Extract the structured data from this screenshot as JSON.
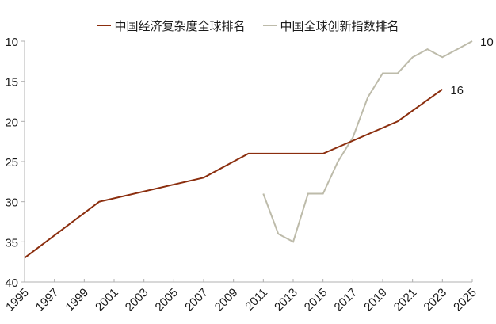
{
  "chart_data": {
    "type": "line",
    "title": "",
    "xlabel": "",
    "ylabel": "",
    "ylim": [
      40,
      10
    ],
    "y_inverted": true,
    "yticks": [
      10,
      15,
      20,
      25,
      30,
      35,
      40
    ],
    "xlim": [
      1995,
      2025
    ],
    "xticks": [
      1995,
      1997,
      1999,
      2001,
      2003,
      2005,
      2007,
      2009,
      2011,
      2013,
      2015,
      2017,
      2019,
      2021,
      2023,
      2025
    ],
    "grid": false,
    "legend_position": "top",
    "series": [
      {
        "name": "中国经济复杂度全球排名",
        "color": "#8B2E0E",
        "x": [
          1995,
          2000,
          2007,
          2010,
          2015,
          2020,
          2023
        ],
        "values": [
          37,
          30,
          27,
          24,
          24,
          20,
          16
        ],
        "end_label": "16"
      },
      {
        "name": "中国全球创新指数排名",
        "color": "#BDBBAA",
        "x": [
          2011,
          2012,
          2013,
          2014,
          2015,
          2016,
          2017,
          2018,
          2019,
          2020,
          2021,
          2022,
          2023,
          2024,
          2025
        ],
        "values": [
          29,
          34,
          35,
          29,
          29,
          25,
          22,
          17,
          14,
          14,
          12,
          11,
          12,
          11,
          10
        ],
        "end_label": "10"
      }
    ]
  },
  "legend": {
    "items": [
      {
        "label": "中国经济复杂度全球排名",
        "color": "#8B2E0E"
      },
      {
        "label": "中国全球创新指数排名",
        "color": "#BDBBAA"
      }
    ]
  }
}
